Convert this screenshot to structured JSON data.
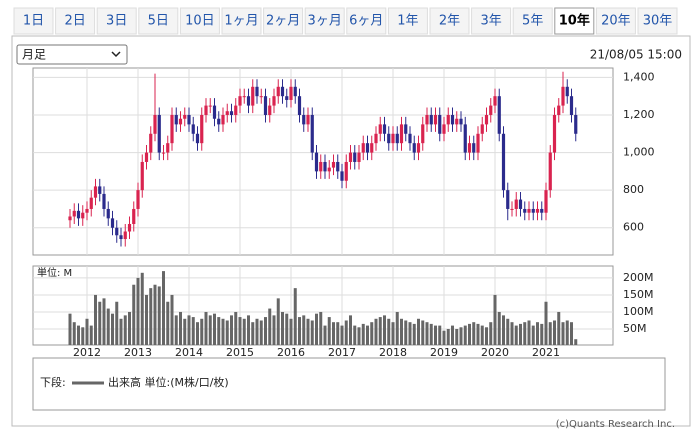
{
  "tabs": [
    "1日",
    "2日",
    "3日",
    "5日",
    "10日",
    "1ヶ月",
    "2ヶ月",
    "3ヶ月",
    "6ヶ月",
    "1年",
    "2年",
    "3年",
    "5年",
    "10年",
    "20年",
    "30年"
  ],
  "active_tab": 13,
  "select": "月足",
  "timestamp": "21/08/05 15:00",
  "chart_data": [
    {
      "type": "candlestick",
      "up_color": "#d9234f",
      "down_color": "#2b2b8c",
      "grid": true,
      "ylim": [
        455,
        1450
      ],
      "yticks": [
        {
          "value": 1400,
          "label": "1,400"
        },
        {
          "value": 1200,
          "label": "1,200"
        },
        {
          "value": 1000,
          "label": "1,000"
        },
        800,
        600
      ],
      "open": [
        640,
        660,
        690,
        650,
        680,
        700,
        760,
        820,
        780,
        700,
        650,
        600,
        560,
        540,
        580,
        620,
        700,
        800,
        950,
        1000,
        1100,
        1200,
        1000,
        1000,
        1050,
        1200,
        1150,
        1180,
        1200,
        1150,
        1100,
        1050,
        1200,
        1250,
        1250,
        1180,
        1150,
        1200,
        1220,
        1200,
        1250,
        1300,
        1300,
        1250,
        1350,
        1300,
        1300,
        1200,
        1250,
        1300,
        1350,
        1300,
        1280,
        1350,
        1300,
        1200,
        1150,
        1200,
        1000,
        900,
        950,
        900,
        920,
        950,
        900,
        850,
        950,
        1000,
        950,
        1000,
        1050,
        1000,
        1050,
        1100,
        1150,
        1100,
        1050,
        1100,
        1050,
        1150,
        1100,
        1050,
        1000,
        1050,
        1150,
        1200,
        1150,
        1200,
        1100,
        1150,
        1200,
        1150,
        1180,
        1150,
        1000,
        1050,
        1000,
        1100,
        1150,
        1200,
        1250,
        1300,
        1100,
        800,
        700,
        700,
        750,
        700,
        680,
        700,
        680,
        700,
        680,
        800,
        1000,
        1200,
        1250,
        1350,
        1300,
        1200
      ],
      "high": [
        700,
        730,
        730,
        720,
        740,
        800,
        860,
        860,
        820,
        740,
        690,
        640,
        600,
        620,
        660,
        740,
        840,
        990,
        1040,
        1140,
        1420,
        1240,
        1040,
        1090,
        1240,
        1240,
        1220,
        1240,
        1240,
        1190,
        1140,
        1240,
        1290,
        1290,
        1290,
        1220,
        1240,
        1260,
        1260,
        1290,
        1340,
        1340,
        1340,
        1390,
        1390,
        1340,
        1340,
        1290,
        1340,
        1390,
        1390,
        1340,
        1390,
        1390,
        1340,
        1240,
        1240,
        1240,
        1040,
        990,
        990,
        960,
        990,
        990,
        940,
        990,
        1040,
        1040,
        1040,
        1090,
        1090,
        1090,
        1140,
        1190,
        1190,
        1140,
        1140,
        1140,
        1190,
        1190,
        1140,
        1090,
        1090,
        1190,
        1240,
        1240,
        1240,
        1240,
        1190,
        1240,
        1240,
        1220,
        1220,
        1190,
        1090,
        1090,
        1140,
        1190,
        1240,
        1290,
        1340,
        1340,
        1140,
        840,
        740,
        790,
        790,
        740,
        740,
        740,
        740,
        740,
        840,
        1040,
        1240,
        1290,
        1430,
        1390,
        1340,
        1240
      ],
      "low": [
        600,
        620,
        610,
        610,
        640,
        660,
        720,
        740,
        660,
        610,
        560,
        520,
        500,
        500,
        540,
        580,
        660,
        760,
        910,
        960,
        1060,
        960,
        960,
        960,
        1010,
        1110,
        1110,
        1140,
        1110,
        1060,
        1010,
        1010,
        1160,
        1210,
        1140,
        1110,
        1110,
        1160,
        1160,
        1160,
        1210,
        1260,
        1210,
        1210,
        1260,
        1260,
        1160,
        1160,
        1210,
        1260,
        1260,
        1240,
        1240,
        1260,
        1160,
        1110,
        1110,
        960,
        860,
        860,
        860,
        860,
        880,
        860,
        810,
        810,
        910,
        910,
        910,
        960,
        960,
        960,
        1010,
        1060,
        1060,
        1010,
        1010,
        1010,
        1010,
        1060,
        1010,
        960,
        960,
        1010,
        1110,
        1110,
        1110,
        1060,
        1060,
        1110,
        1110,
        1110,
        1110,
        960,
        960,
        960,
        960,
        1060,
        1110,
        1160,
        1210,
        1060,
        760,
        640,
        660,
        660,
        660,
        640,
        640,
        640,
        640,
        640,
        640,
        760,
        960,
        1160,
        1210,
        1260,
        1160,
        1060
      ],
      "close": [
        660,
        690,
        650,
        680,
        700,
        760,
        820,
        780,
        700,
        650,
        600,
        560,
        540,
        580,
        620,
        700,
        800,
        950,
        1000,
        1100,
        1200,
        1000,
        1000,
        1050,
        1200,
        1150,
        1180,
        1200,
        1150,
        1100,
        1050,
        1200,
        1250,
        1250,
        1180,
        1150,
        1200,
        1220,
        1200,
        1250,
        1300,
        1300,
        1250,
        1350,
        1300,
        1300,
        1200,
        1250,
        1300,
        1350,
        1300,
        1280,
        1350,
        1300,
        1200,
        1150,
        1200,
        1000,
        900,
        950,
        900,
        920,
        950,
        900,
        850,
        950,
        1000,
        950,
        1000,
        1050,
        1000,
        1050,
        1100,
        1150,
        1100,
        1050,
        1100,
        1050,
        1150,
        1100,
        1050,
        1000,
        1050,
        1150,
        1200,
        1150,
        1200,
        1100,
        1150,
        1200,
        1150,
        1180,
        1150,
        1000,
        1050,
        1000,
        1100,
        1150,
        1200,
        1250,
        1300,
        1100,
        800,
        700,
        700,
        750,
        700,
        680,
        700,
        680,
        700,
        680,
        800,
        1000,
        1200,
        1250,
        1350,
        1300,
        1200,
        1100
      ]
    },
    {
      "type": "bar",
      "unit_label": "単位: M",
      "color": "#666666",
      "ylim": [
        3,
        235
      ],
      "yticks": [
        {
          "value": 200,
          "label": "200M"
        },
        {
          "value": 150,
          "label": "150M"
        },
        {
          "value": 100,
          "label": "100M"
        },
        {
          "value": 50,
          "label": "50M"
        }
      ],
      "categories": [
        null,
        null,
        null,
        null,
        "2012",
        null,
        null,
        null,
        null,
        null,
        null,
        null,
        null,
        null,
        null,
        null,
        "2013",
        null,
        null,
        null,
        null,
        null,
        null,
        null,
        null,
        null,
        null,
        null,
        "2014",
        null,
        null,
        null,
        null,
        null,
        null,
        null,
        null,
        null,
        null,
        null,
        "2015",
        null,
        null,
        null,
        null,
        null,
        null,
        null,
        null,
        null,
        null,
        null,
        "2016",
        null,
        null,
        null,
        null,
        null,
        null,
        null,
        null,
        null,
        null,
        null,
        "2017",
        null,
        null,
        null,
        null,
        null,
        null,
        null,
        null,
        null,
        null,
        null,
        "2018",
        null,
        null,
        null,
        null,
        null,
        null,
        null,
        null,
        null,
        null,
        null,
        "2019",
        null,
        null,
        null,
        null,
        null,
        null,
        null,
        null,
        null,
        null,
        null,
        "2020",
        null,
        null,
        null,
        null,
        null,
        null,
        null,
        null,
        null,
        null,
        null,
        "2021",
        null,
        null,
        null,
        null,
        null,
        null,
        null
      ],
      "values": [
        95,
        70,
        60,
        55,
        80,
        60,
        150,
        130,
        140,
        110,
        95,
        130,
        80,
        90,
        100,
        180,
        200,
        215,
        150,
        170,
        180,
        175,
        220,
        130,
        150,
        90,
        100,
        80,
        90,
        85,
        70,
        80,
        100,
        90,
        95,
        85,
        80,
        75,
        90,
        100,
        85,
        80,
        90,
        70,
        80,
        75,
        85,
        110,
        90,
        140,
        100,
        95,
        80,
        170,
        85,
        90,
        80,
        75,
        95,
        100,
        60,
        85,
        70,
        70,
        60,
        75,
        90,
        60,
        55,
        65,
        60,
        70,
        80,
        85,
        90,
        80,
        70,
        100,
        80,
        75,
        70,
        65,
        80,
        75,
        70,
        65,
        60,
        60,
        45,
        50,
        60,
        50,
        55,
        60,
        65,
        70,
        65,
        60,
        55,
        70,
        150,
        100,
        90,
        80,
        70,
        60,
        65,
        70,
        75,
        60,
        70,
        65,
        130,
        70,
        75,
        100,
        70,
        75,
        70,
        20
      ]
    }
  ],
  "legend": {
    "label": "下段:",
    "text": "出来高 単位:(M株/口/枚)"
  },
  "credit": "(c)Quants Research Inc."
}
